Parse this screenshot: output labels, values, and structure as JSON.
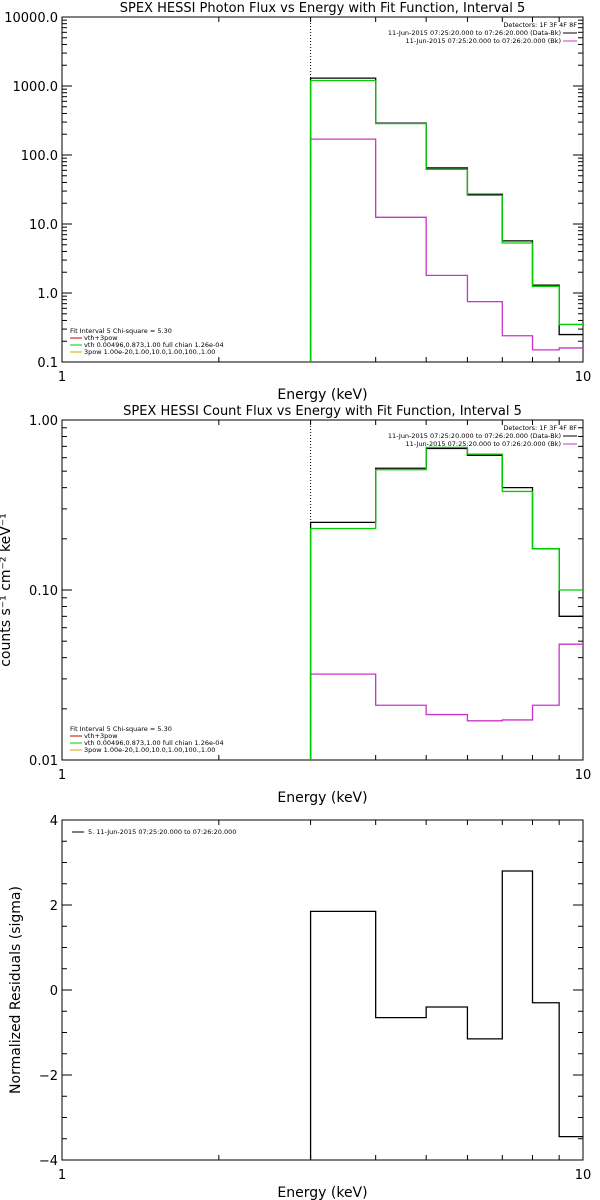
{
  "colors": {
    "black": "#000000",
    "green": "#00cc00",
    "magenta": "#cc33cc",
    "red": "#cc0000",
    "orange": "#d4a000"
  },
  "chart_data": [
    {
      "type": "line",
      "title": "SPEX HESSI Photon Flux vs Energy with Fit Function, Interval 5",
      "xlabel": "Energy (keV)",
      "ylabel": "",
      "x_scale": "log",
      "y_scale": "log",
      "xlim": [
        1,
        10
      ],
      "ylim": [
        0.1,
        10000
      ],
      "x_ticks": [
        {
          "v": 1,
          "label": "1"
        },
        {
          "v": 10,
          "label": "10"
        }
      ],
      "y_ticks": [
        {
          "v": 10000,
          "label": "10000.0"
        },
        {
          "v": 1000,
          "label": "1000.0"
        },
        {
          "v": 100,
          "label": "100.0"
        },
        {
          "v": 10,
          "label": "10.0"
        },
        {
          "v": 1,
          "label": "1.0"
        },
        {
          "v": 0.1,
          "label": "0.1"
        }
      ],
      "vline": 3,
      "bin_edges": [
        3,
        4,
        5,
        6,
        7,
        8,
        9,
        10
      ],
      "series": [
        {
          "name": "11-Jun-2015 07:25:20.000 to 07:26:20.000 (Data-Bk)",
          "color": "black",
          "values": [
            1300,
            290,
            65,
            27,
            5.7,
            1.3,
            0.25
          ]
        },
        {
          "name": "11-Jun-2015 07:25:20.000 to 07:26:20.000 (Bk)",
          "color": "magenta",
          "values": [
            170,
            12.5,
            1.8,
            0.75,
            0.24,
            0.15,
            0.16
          ]
        },
        {
          "name": "vth 0.00496,0.873,1.00 full chian 1.26e-04",
          "color": "green",
          "values": [
            1200,
            285,
            62,
            26,
            5.3,
            1.25,
            0.35
          ]
        }
      ],
      "legend": {
        "placement": "top-right",
        "lines": [
          "Detectors: 1F 3F 4F 8F",
          "11-Jun-2015 07:25:20.000 to 07:26:20.000 (Data-Bk)",
          "11-Jun-2015 07:25:20.000 to 07:26:20.000 (Bk)"
        ],
        "colors": [
          "none",
          "black",
          "magenta"
        ]
      },
      "fit_legend": {
        "placement": "bottom-left",
        "lines": [
          "Fit Interval 5   Chi-square = 5.30",
          "vth+3pow",
          "vth 0.00496,0.873,1.00  full chian 1.26e-04",
          "3pow 1.00e-20,1.00,10.0,1.00,100.,1.00"
        ],
        "colors": [
          "none",
          "red",
          "green",
          "orange"
        ]
      }
    },
    {
      "type": "line",
      "title": "SPEX HESSI Count Flux vs Energy with Fit Function, Interval 5",
      "xlabel": "Energy (keV)",
      "ylabel": "counts s⁻¹ cm⁻² keV⁻¹",
      "x_scale": "log",
      "y_scale": "log",
      "xlim": [
        1,
        10
      ],
      "ylim": [
        0.01,
        1
      ],
      "x_ticks": [
        {
          "v": 1,
          "label": "1"
        },
        {
          "v": 10,
          "label": "10"
        }
      ],
      "y_ticks": [
        {
          "v": 1,
          "label": "1.00"
        },
        {
          "v": 0.1,
          "label": "0.10"
        },
        {
          "v": 0.01,
          "label": "0.01"
        }
      ],
      "vline": 3,
      "bin_edges": [
        3,
        4,
        5,
        6,
        7,
        8,
        9,
        10
      ],
      "series": [
        {
          "name": "11-Jun-2015 07:25:20.000 to 07:26:20.000 (Data-Bk)",
          "color": "black",
          "values": [
            0.25,
            0.52,
            0.68,
            0.62,
            0.4,
            0.175,
            0.07
          ]
        },
        {
          "name": "11-Jun-2015 07:25:20.000 to 07:26:20.000 (Bk)",
          "color": "magenta",
          "values": [
            0.032,
            0.021,
            0.0185,
            0.017,
            0.0172,
            0.021,
            0.048
          ]
        },
        {
          "name": "vth 0.00496,0.873,1.00 full chian 1.26e-04",
          "color": "green",
          "values": [
            0.23,
            0.51,
            0.69,
            0.63,
            0.38,
            0.175,
            0.1
          ]
        }
      ],
      "legend": {
        "placement": "top-right",
        "lines": [
          "Detectors: 1F 3F 4F 8F",
          "11-Jun-2015 07:25:20.000 to 07:26:20.000 (Data-Bk)",
          "11-Jun-2015 07:25:20.000 to 07:26:20.000 (Bk)"
        ],
        "colors": [
          "none",
          "black",
          "magenta"
        ]
      },
      "fit_legend": {
        "placement": "bottom-left",
        "lines": [
          "Fit Interval 5   Chi-square = 5.30",
          "vth+3pow",
          "vth 0.00496,0.873,1.00  full chian 1.26e-04",
          "3pow 1.00e-20,1.00,10.0,1.00,100.,1.00"
        ],
        "colors": [
          "none",
          "red",
          "green",
          "orange"
        ]
      }
    },
    {
      "type": "line",
      "title": "",
      "xlabel": "Energy (keV)",
      "ylabel": "Normalized Residuals (sigma)",
      "x_scale": "log",
      "y_scale": "linear",
      "xlim": [
        1,
        10
      ],
      "ylim": [
        -4,
        4
      ],
      "x_ticks": [
        {
          "v": 1,
          "label": "1"
        },
        {
          "v": 10,
          "label": "10"
        }
      ],
      "y_ticks": [
        {
          "v": 4,
          "label": "4"
        },
        {
          "v": 2,
          "label": "2"
        },
        {
          "v": 0,
          "label": "0"
        },
        {
          "v": -2,
          "label": "−2"
        },
        {
          "v": -4,
          "label": "−4"
        }
      ],
      "bin_edges": [
        3,
        4,
        5,
        6,
        7,
        8,
        9,
        10
      ],
      "series": [
        {
          "name": "5. 11-Jun-2015 07:25:20.000 to 07:26:20.000",
          "color": "black",
          "values": [
            1.85,
            -0.65,
            -0.4,
            -1.15,
            2.8,
            -0.3,
            -3.45
          ]
        }
      ],
      "legend": {
        "placement": "top-left",
        "lines": [
          "5. 11-Jun-2015 07:25:20.000 to 07:26:20.000"
        ],
        "colors": [
          "black"
        ]
      }
    }
  ]
}
